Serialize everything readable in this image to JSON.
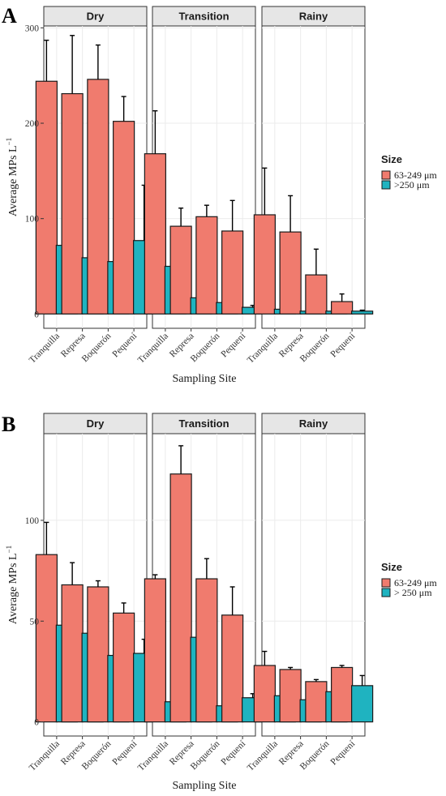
{
  "colors": {
    "fine": "#F07B6E",
    "coarse": "#1FB3C0"
  },
  "chart_data": [
    {
      "type": "bar",
      "panel_label": "A",
      "facets": [
        "Dry",
        "Transition",
        "Rainy"
      ],
      "categories": [
        "Tranquilla",
        "Represa",
        "Boquerón",
        "Pequení"
      ],
      "xlabel": "Sampling Site",
      "ylabel_main": "Average MPs L",
      "ylabel_sup": "−1",
      "ylim": [
        -15,
        302
      ],
      "yticks": [
        0,
        100,
        200,
        300
      ],
      "legend": {
        "title": "Size",
        "labels": [
          "63-249 μm",
          ">250 μm"
        ],
        "position": "right"
      },
      "series": [
        {
          "name": "63-249 μm",
          "values": [
            [
              244,
              231,
              246,
              202
            ],
            [
              168,
              92,
              102,
              87
            ],
            [
              104,
              86,
              41,
              13
            ]
          ],
          "errors": [
            [
              43,
              61,
              36,
              26
            ],
            [
              45,
              19,
              12,
              32
            ],
            [
              49,
              38,
              27,
              8
            ]
          ]
        },
        {
          "name": ">250 μm",
          "values": [
            [
              72,
              59,
              55,
              77
            ],
            [
              50,
              17,
              12,
              7
            ],
            [
              5,
              3,
              3,
              3
            ]
          ],
          "errors": [
            [
              42,
              21,
              29,
              58
            ],
            [
              29,
              2,
              3,
              2
            ],
            [
              2,
              1,
              1,
              1
            ]
          ]
        }
      ]
    },
    {
      "type": "bar",
      "panel_label": "B",
      "facets": [
        "Dry",
        "Transition",
        "Rainy"
      ],
      "categories": [
        "Tranquilla",
        "Represa",
        "Boquerón",
        "Pequení"
      ],
      "xlabel": "Sampling Site",
      "ylabel_main": "Average MPs L",
      "ylabel_sup": "−1",
      "ylim": [
        -7,
        143
      ],
      "yticks": [
        0,
        50,
        100
      ],
      "legend": {
        "title": "Size",
        "labels": [
          "63-249 μm",
          "> 250 μm"
        ],
        "position": "right"
      },
      "series": [
        {
          "name": "63-249 μm",
          "values": [
            [
              83,
              68,
              67,
              54
            ],
            [
              71,
              123,
              71,
              53
            ],
            [
              28,
              26,
              20,
              27
            ]
          ],
          "errors": [
            [
              16,
              11,
              3,
              5
            ],
            [
              2,
              14,
              10,
              14
            ],
            [
              7,
              1,
              1,
              1
            ]
          ]
        },
        {
          "name": "> 250 μm",
          "values": [
            [
              48,
              44,
              33,
              34
            ],
            [
              10,
              42,
              8,
              12
            ],
            [
              13,
              11,
              15,
              18
            ]
          ],
          "errors": [
            [
              4,
              11,
              3,
              7
            ],
            [
              0,
              17,
              2,
              2
            ],
            [
              3,
              3,
              6,
              5
            ]
          ]
        }
      ]
    }
  ]
}
